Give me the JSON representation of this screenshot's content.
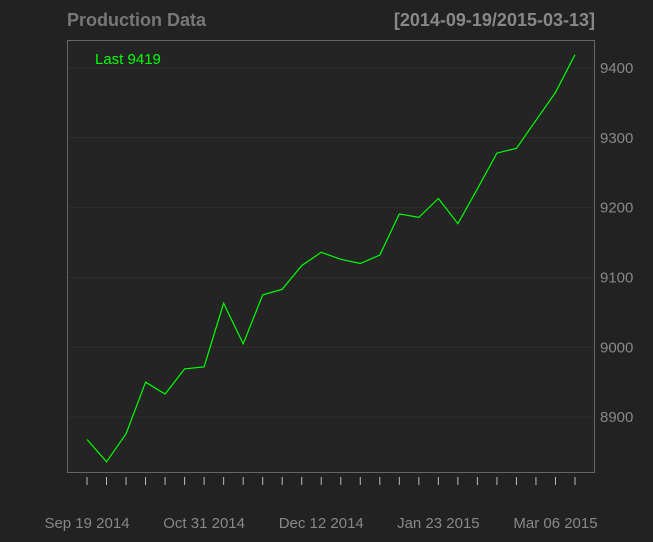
{
  "chart_data": {
    "type": "line",
    "title": "Production Data",
    "date_range": "[2014-09-19/2015-03-13]",
    "last_label": "Last 9419",
    "xlabel": "",
    "ylabel": "",
    "x_tick_labels": [
      "Sep 19 2014",
      "Oct 31 2014",
      "Dec 12 2014",
      "Jan 23 2015",
      "Mar 06 2015"
    ],
    "y_tick_labels": [
      "8900",
      "9000",
      "9100",
      "9200",
      "9300",
      "9400"
    ],
    "y_ticks": [
      8900,
      9000,
      9100,
      9200,
      9300,
      9400
    ],
    "ylim": [
      8820,
      9440
    ],
    "grid": true,
    "x": [
      "2014-09-19",
      "2014-09-26",
      "2014-10-03",
      "2014-10-10",
      "2014-10-17",
      "2014-10-24",
      "2014-10-31",
      "2014-11-07",
      "2014-11-14",
      "2014-11-21",
      "2014-11-28",
      "2014-12-05",
      "2014-12-12",
      "2014-12-19",
      "2014-12-26",
      "2015-01-02",
      "2015-01-09",
      "2015-01-16",
      "2015-01-23",
      "2015-01-30",
      "2015-02-06",
      "2015-02-13",
      "2015-02-20",
      "2015-02-27",
      "2015-03-06",
      "2015-03-13"
    ],
    "series": [
      {
        "values": [
          8868,
          8836,
          8876,
          8950,
          8933,
          8969,
          8972,
          9063,
          9005,
          9075,
          9083,
          9117,
          9136,
          9126,
          9120,
          9132,
          9191,
          9186,
          9213,
          9177,
          9227,
          9278,
          9285,
          9325,
          9365,
          9419
        ]
      }
    ],
    "colors": {
      "background": "#222222",
      "plot_background": "#242424",
      "line": "#00ff00",
      "text": "#888888",
      "title": "#777777",
      "grid": "#2e2e2e",
      "frame": "#666666"
    }
  }
}
